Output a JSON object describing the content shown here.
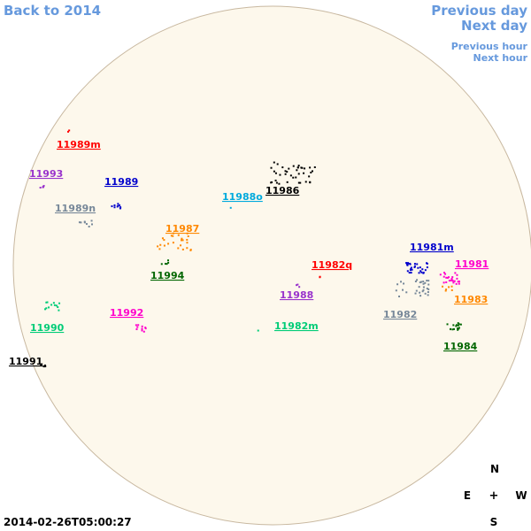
{
  "nav": {
    "back": "Back to 2014",
    "previous_day": "Previous day",
    "next_day": "Next day",
    "previous_hour": "Previous hour",
    "next_hour": "Next hour"
  },
  "timestamp": "2014-02-26T05:00:27",
  "compass": {
    "north": "N",
    "east": "E",
    "center": "+",
    "west": "W",
    "south": "S"
  },
  "regions": [
    {
      "label": "11989m",
      "color": "#ff0000"
    },
    {
      "label": "11993",
      "color": "#9933cc"
    },
    {
      "label": "11989",
      "color": "#0000cc"
    },
    {
      "label": "11989n",
      "color": "#778899"
    },
    {
      "label": "11988o",
      "color": "#00aadd"
    },
    {
      "label": "11986",
      "color": "#000000"
    },
    {
      "label": "11987",
      "color": "#ff8800"
    },
    {
      "label": "11994",
      "color": "#006600"
    },
    {
      "label": "11982q",
      "color": "#ff0000"
    },
    {
      "label": "11981m",
      "color": "#0000cc"
    },
    {
      "label": "11981",
      "color": "#ff00cc"
    },
    {
      "label": "11983",
      "color": "#ff8800"
    },
    {
      "label": "11988",
      "color": "#9933cc"
    },
    {
      "label": "11982",
      "color": "#778899"
    },
    {
      "label": "11992",
      "color": "#ff00cc"
    },
    {
      "label": "11990",
      "color": "#00cc77"
    },
    {
      "label": "11982m",
      "color": "#00cc77"
    },
    {
      "label": "11984",
      "color": "#006600"
    },
    {
      "label": "11991",
      "color": "#000000"
    }
  ]
}
